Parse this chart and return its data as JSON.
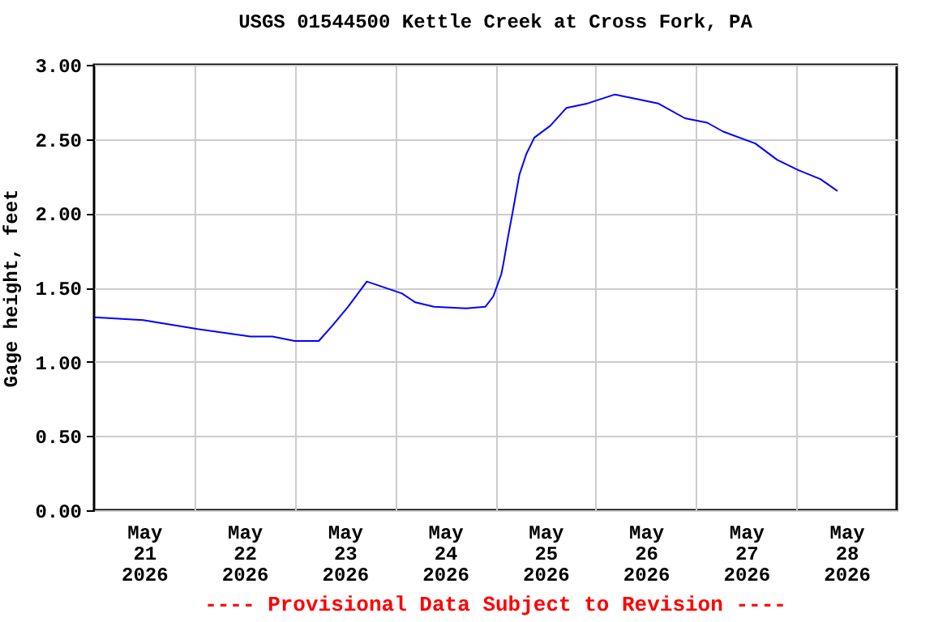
{
  "chart_data": {
    "type": "line",
    "title": "USGS 01544500 Kettle Creek at Cross Fork, PA",
    "ylabel": "Gage height, feet",
    "annotations": [
      "---- Provisional Data Subject to Revision ----"
    ],
    "xlim": [
      "2026-05-21T00:00",
      "2026-05-29T00:00"
    ],
    "xticks": [
      {
        "value": "2026-05-21T12:00",
        "label": "May\n21\n2026"
      },
      {
        "value": "2026-05-22T12:00",
        "label": "May\n22\n2026"
      },
      {
        "value": "2026-05-23T12:00",
        "label": "May\n23\n2026"
      },
      {
        "value": "2026-05-24T12:00",
        "label": "May\n24\n2026"
      },
      {
        "value": "2026-05-25T12:00",
        "label": "May\n25\n2026"
      },
      {
        "value": "2026-05-26T12:00",
        "label": "May\n26\n2026"
      },
      {
        "value": "2026-05-27T12:00",
        "label": "May\n27\n2026"
      },
      {
        "value": "2026-05-28T12:00",
        "label": "May\n28\n2026"
      },
      {
        "value": "2026-05-22T00:00",
        "label": null
      },
      {
        "value": "2026-05-23T00:00",
        "label": null
      },
      {
        "value": "2026-05-24T00:00",
        "label": null
      },
      {
        "value": "2026-05-25T00:00",
        "label": null
      },
      {
        "value": "2026-05-26T00:00",
        "label": null
      },
      {
        "value": "2026-05-27T00:00",
        "label": null
      },
      {
        "value": "2026-05-28T00:00",
        "label": null
      }
    ],
    "ylim": [
      0,
      3
    ],
    "yticks": [
      {
        "value": 0,
        "label": "0.00"
      },
      {
        "value": 0.5,
        "label": "0.50"
      },
      {
        "value": 1,
        "label": "1.00"
      },
      {
        "value": 1.5,
        "label": "1.50"
      },
      {
        "value": 2,
        "label": "2.00"
      },
      {
        "value": 2.5,
        "label": "2.50"
      },
      {
        "value": 3,
        "label": "3.00"
      }
    ],
    "grid": true,
    "x": [
      "2026-05-21T00:00",
      "2026-05-21T11:45",
      "2026-05-22T00:45",
      "2026-05-22T13:25",
      "2026-05-22T18:40",
      "2026-05-23T00:00",
      "2026-05-23T05:45",
      "2026-05-23T08:55",
      "2026-05-23T12:45",
      "2026-05-23T17:15",
      "2026-05-23T20:25",
      "2026-05-24T01:40",
      "2026-05-24T04:50",
      "2026-05-24T09:20",
      "2026-05-24T17:00",
      "2026-05-24T21:35",
      "2026-05-24T23:30",
      "2026-05-25T01:25",
      "2026-05-25T01:55",
      "2026-05-25T03:05",
      "2026-05-25T04:05",
      "2026-05-25T05:45",
      "2026-05-25T07:25",
      "2026-05-25T09:20",
      "2026-05-25T13:10",
      "2026-05-25T17:00",
      "2026-05-25T22:05",
      "2026-05-26T04:35",
      "2026-05-26T09:50",
      "2026-05-26T14:55",
      "2026-05-26T21:20",
      "2026-05-27T02:40",
      "2026-05-27T06:30",
      "2026-05-27T14:10",
      "2026-05-27T19:25",
      "2026-05-28T00:30",
      "2026-05-28T05:45",
      "2026-05-28T09:50"
    ],
    "series": [
      {
        "color": "#0000ff",
        "values": [
          1.3,
          1.28,
          1.22,
          1.17,
          1.17,
          1.14,
          1.14,
          1.24,
          1.37,
          1.54,
          1.51,
          1.46,
          1.4,
          1.37,
          1.36,
          1.37,
          1.44,
          1.59,
          1.66,
          1.85,
          2.0,
          2.26,
          2.4,
          2.51,
          2.59,
          2.71,
          2.74,
          2.8,
          2.77,
          2.74,
          2.64,
          2.61,
          2.55,
          2.47,
          2.36,
          2.29,
          2.23,
          2.15
        ]
      }
    ]
  }
}
